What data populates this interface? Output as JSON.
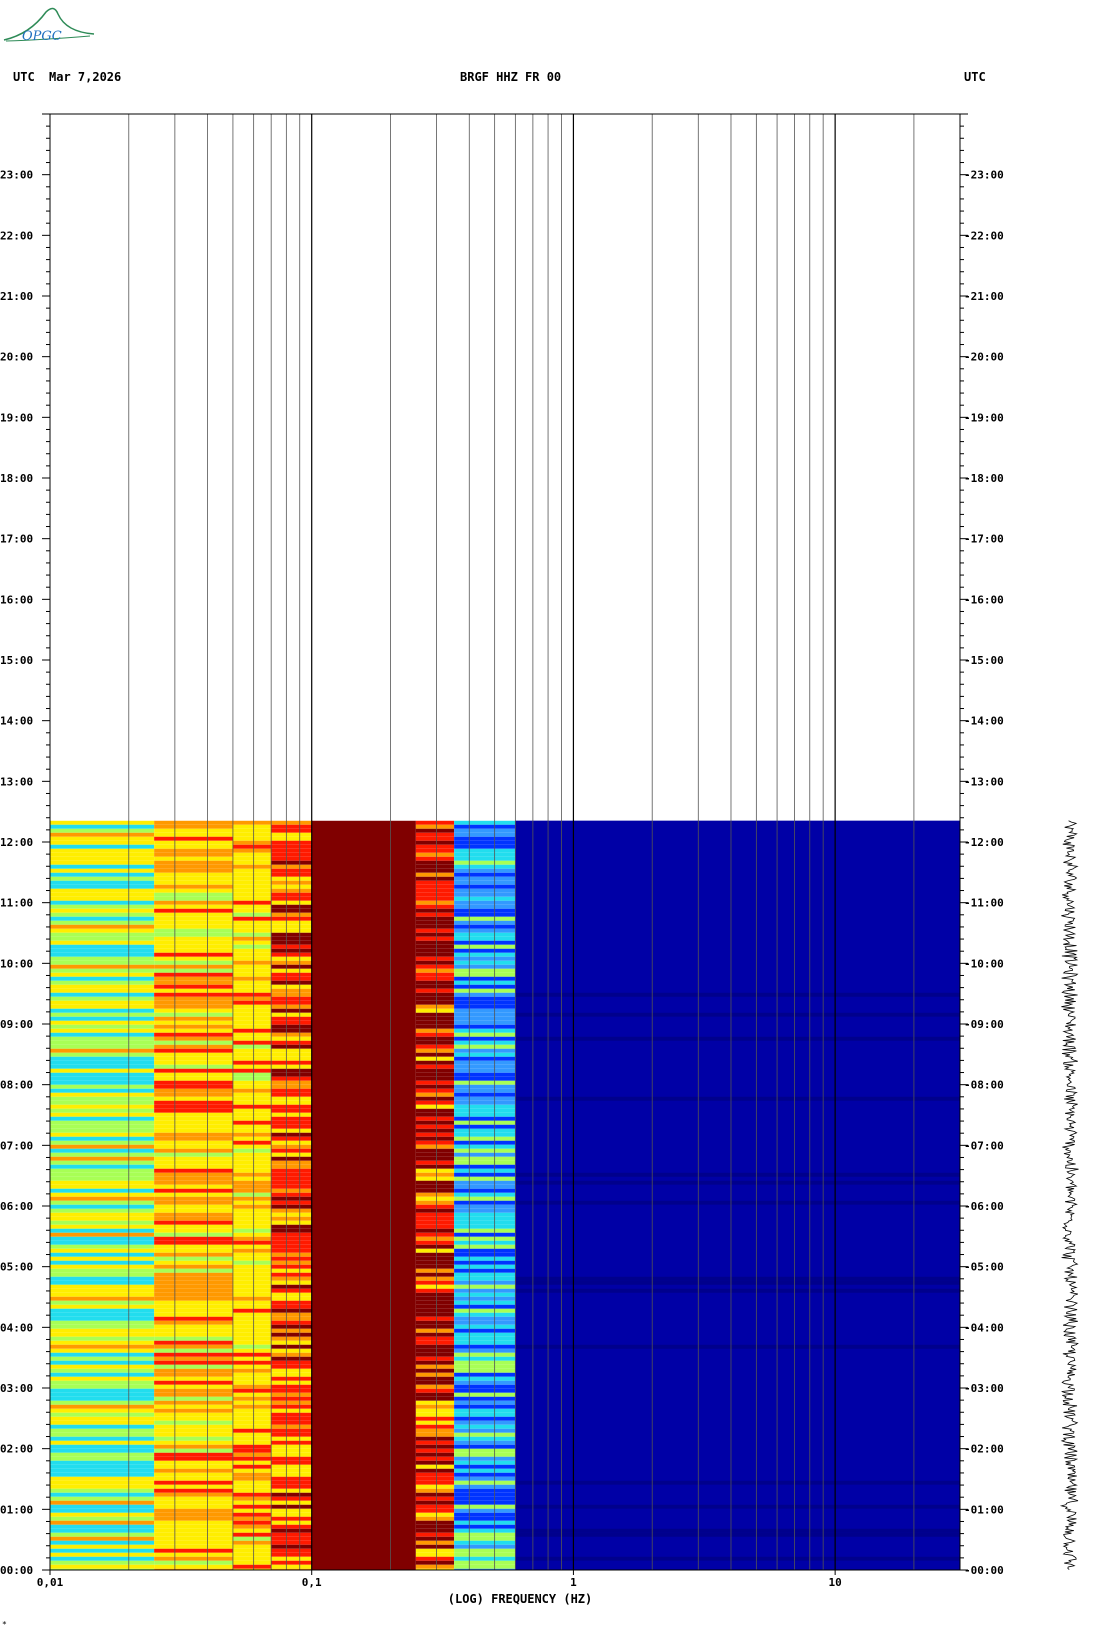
{
  "header": {
    "left_tz": "UTC",
    "date": "Mar 7,2026",
    "station": "BRGF HHZ FR 00",
    "right_tz": "UTC"
  },
  "logo": {
    "text": "OPGC"
  },
  "footnote": "*",
  "chart_data": {
    "type": "heatmap",
    "title": "BRGF HHZ FR 00",
    "xlabel": "(LOG) FREQUENCY (HZ)",
    "ylabel": "",
    "x_scale": "log",
    "x_range_hz": [
      0.01,
      30
    ],
    "x_tick_labels": [
      {
        "value": 0.01,
        "label": "0,01"
      },
      {
        "value": 0.1,
        "label": "0,1"
      },
      {
        "value": 1,
        "label": "1"
      },
      {
        "value": 10,
        "label": "10"
      }
    ],
    "y_range_hours": [
      0,
      24
    ],
    "y_tick_labels_left": [
      "00:00",
      "01:00",
      "02:00",
      "03:00",
      "04:00",
      "05:00",
      "06:00",
      "07:00",
      "08:00",
      "09:00",
      "10:00",
      "11:00",
      "12:00",
      "13:00",
      "14:00",
      "15:00",
      "16:00",
      "17:00",
      "18:00",
      "19:00",
      "20:00",
      "21:00",
      "22:00",
      "23:00"
    ],
    "y_tick_labels_right": [
      "-00:00",
      "-01:00",
      "-02:00",
      "-03:00",
      "-04:00",
      "-05:00",
      "-06:00",
      "-07:00",
      "-08:00",
      "-09:00",
      "-10:00",
      "-11:00",
      "-12:00",
      "-13:00",
      "-14:00",
      "-15:00",
      "-16:00",
      "-17:00",
      "-18:00",
      "-19:00",
      "-20:00",
      "-21:00",
      "-22:00",
      "-23:00"
    ],
    "data_end_hour": 12.35,
    "gridlines_hz": [
      0.02,
      0.03,
      0.04,
      0.05,
      0.06,
      0.07,
      0.08,
      0.09,
      0.1,
      0.2,
      0.3,
      0.4,
      0.5,
      0.6,
      0.7,
      0.8,
      0.9,
      1,
      2,
      3,
      4,
      5,
      6,
      7,
      8,
      9,
      10,
      20
    ],
    "spectral_bands": [
      {
        "f_start": 0.01,
        "f_end": 0.025,
        "level": "cyan-yellow"
      },
      {
        "f_start": 0.025,
        "f_end": 0.05,
        "level": "yellow-orange"
      },
      {
        "f_start": 0.05,
        "f_end": 0.07,
        "level": "yellow"
      },
      {
        "f_start": 0.07,
        "f_end": 0.1,
        "level": "red-yellow"
      },
      {
        "f_start": 0.1,
        "f_end": 0.25,
        "level": "dark-red"
      },
      {
        "f_start": 0.25,
        "f_end": 0.35,
        "level": "red-orange"
      },
      {
        "f_start": 0.35,
        "f_end": 0.6,
        "level": "cyan-blue"
      },
      {
        "f_start": 0.6,
        "f_end": 30,
        "level": "dark-blue"
      }
    ],
    "colors": {
      "dark_red": "#800000",
      "red": "#ff1a00",
      "orange": "#ff9900",
      "yellow": "#ffee00",
      "light_green": "#a8ff55",
      "cyan": "#22ddee",
      "blue": "#0033ff",
      "dark_blue": "#0000a6",
      "navy": "#00008c"
    }
  }
}
